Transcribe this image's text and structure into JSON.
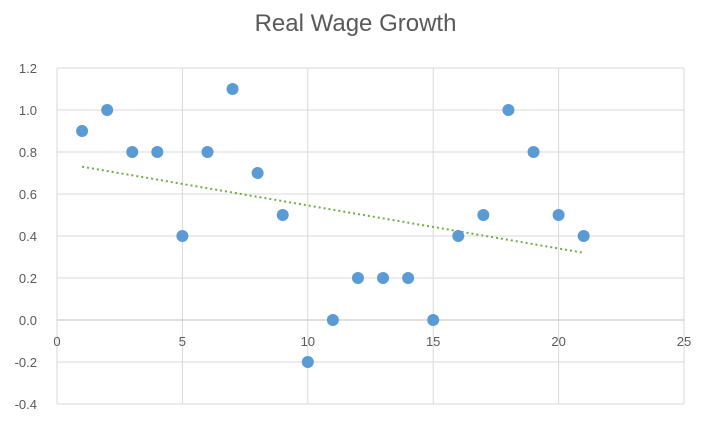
{
  "chart_data": {
    "type": "scatter",
    "title": "Real Wage Growth",
    "xlabel": "",
    "ylabel": "",
    "xlim": [
      0,
      25
    ],
    "ylim": [
      -0.4,
      1.2
    ],
    "x_ticks": [
      0,
      5,
      10,
      15,
      20,
      25
    ],
    "y_ticks": [
      -0.4,
      -0.2,
      0.0,
      0.2,
      0.4,
      0.6,
      0.8,
      1.0,
      1.2
    ],
    "x_tick_labels": [
      "0",
      "5",
      "10",
      "15",
      "20",
      "25"
    ],
    "y_tick_labels": [
      "-0.4",
      "-0.2",
      "0.0",
      "0.2",
      "0.4",
      "0.6",
      "0.8",
      "1.0",
      "1.2"
    ],
    "grid": true,
    "legend": "none",
    "marker_color": "#5b9bd5",
    "trendline_color": "#70ad47",
    "series": [
      {
        "x": [
          1,
          2,
          3,
          4,
          5,
          6,
          7,
          8,
          9,
          10,
          11,
          12,
          13,
          14,
          15,
          16,
          17,
          18,
          19,
          20,
          21
        ],
        "y": [
          0.9,
          1.0,
          0.8,
          0.8,
          0.4,
          0.8,
          1.1,
          0.7,
          0.5,
          -0.2,
          0.0,
          0.2,
          0.2,
          0.2,
          0.0,
          0.4,
          0.5,
          1.0,
          0.8,
          0.5,
          0.4
        ]
      }
    ],
    "trendline": {
      "type": "linear",
      "x": [
        1,
        21
      ],
      "y": [
        0.73,
        0.32
      ],
      "style": "dotted"
    }
  }
}
